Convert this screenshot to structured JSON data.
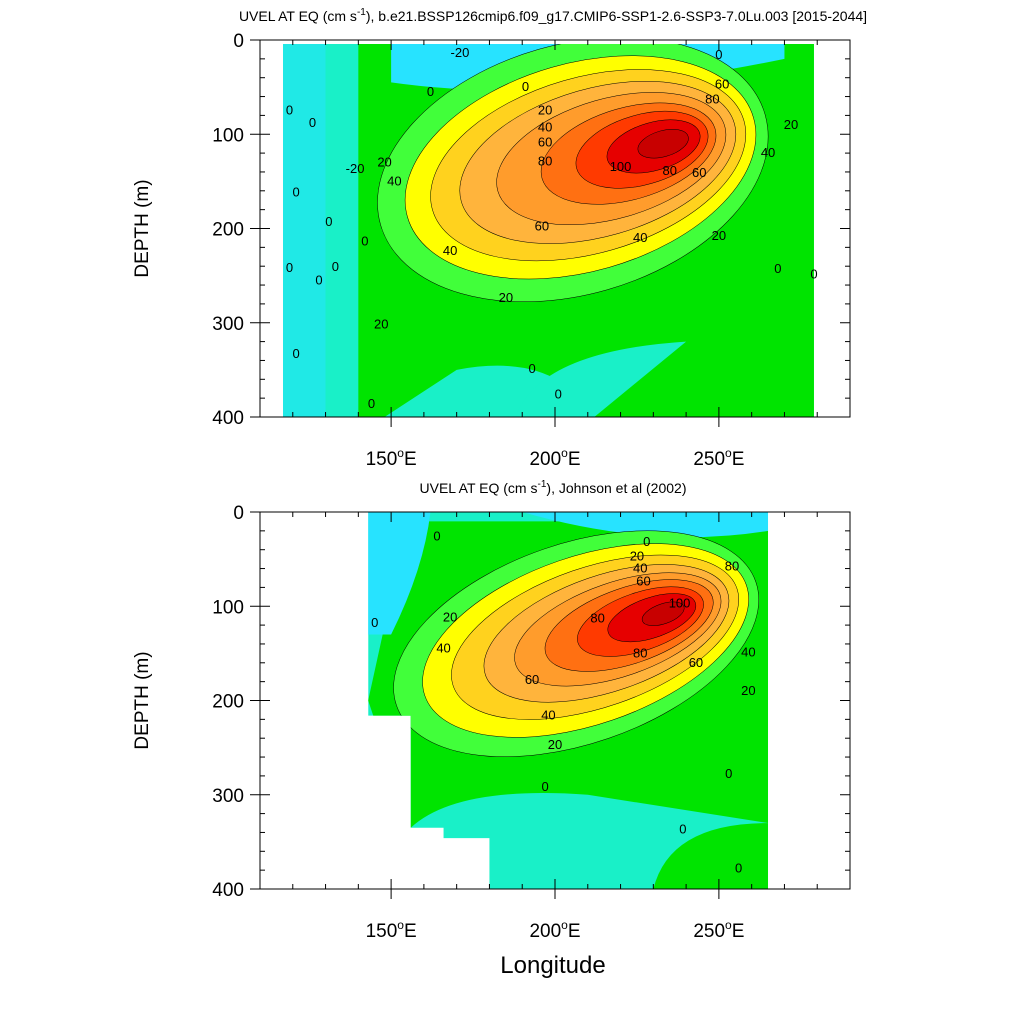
{
  "figure": {
    "xlabel": "Longitude",
    "colors": {
      "c_m20": "#27e3ff",
      "c_0": "#19f0c8",
      "c_10": "#00e400",
      "c_20": "#41ff3a",
      "c_30": "#ffff00",
      "c_40": "#ffd21e",
      "c_50": "#ffb43c",
      "c_60": "#ff9c2c",
      "c_70": "#ff7012",
      "c_80": "#ff3a00",
      "c_90": "#e60000",
      "c_100": "#c80000"
    }
  },
  "chart_data": [
    {
      "type": "contour",
      "title_prefix": "UVEL AT EQ (cm s",
      "title_sup": "-1",
      "title_suffix": "), b.e21.BSSP126cmip6.f09_g17.CMIP6-SSP1-2.6-SSP3-7.0Lu.003 [2015-2044]",
      "ylabel": "DEPTH (m)",
      "xlim": [
        110,
        290
      ],
      "ylim": [
        400,
        0
      ],
      "data_xrange": [
        117,
        279
      ],
      "xticks": [
        {
          "value": 150,
          "label": "150",
          "deg": "o",
          "hemi": "E"
        },
        {
          "value": 200,
          "label": "200",
          "deg": "o",
          "hemi": "E"
        },
        {
          "value": 250,
          "label": "250",
          "deg": "o",
          "hemi": "E"
        }
      ],
      "yticks": [
        {
          "value": 0,
          "label": "0"
        },
        {
          "value": 100,
          "label": "100"
        },
        {
          "value": 200,
          "label": "200"
        },
        {
          "value": 300,
          "label": "300"
        },
        {
          "value": 400,
          "label": "400"
        }
      ],
      "core": {
        "lon": 233,
        "depth": 110,
        "max_speed": 110
      },
      "contour_labels": [
        {
          "text": "-20",
          "lon": 171,
          "depth": 14
        },
        {
          "text": "0",
          "lon": 250,
          "depth": 16
        },
        {
          "text": "0",
          "lon": 191,
          "depth": 50
        },
        {
          "text": "0",
          "lon": 162,
          "depth": 55
        },
        {
          "text": "60",
          "lon": 251,
          "depth": 47
        },
        {
          "text": "80",
          "lon": 248,
          "depth": 63
        },
        {
          "text": "20",
          "lon": 197,
          "depth": 75
        },
        {
          "text": "40",
          "lon": 197,
          "depth": 93
        },
        {
          "text": "60",
          "lon": 197,
          "depth": 109
        },
        {
          "text": "80",
          "lon": 197,
          "depth": 129
        },
        {
          "text": "100",
          "lon": 220,
          "depth": 135
        },
        {
          "text": "80",
          "lon": 235,
          "depth": 139
        },
        {
          "text": "60",
          "lon": 244,
          "depth": 141
        },
        {
          "text": "40",
          "lon": 265,
          "depth": 120
        },
        {
          "text": "20",
          "lon": 272,
          "depth": 90
        },
        {
          "text": "20",
          "lon": 148,
          "depth": 130
        },
        {
          "text": "40",
          "lon": 151,
          "depth": 150
        },
        {
          "text": "-20",
          "lon": 139,
          "depth": 137
        },
        {
          "text": "60",
          "lon": 196,
          "depth": 198
        },
        {
          "text": "40",
          "lon": 226,
          "depth": 210
        },
        {
          "text": "20",
          "lon": 250,
          "depth": 208
        },
        {
          "text": "40",
          "lon": 168,
          "depth": 224
        },
        {
          "text": "20",
          "lon": 185,
          "depth": 274
        },
        {
          "text": "20",
          "lon": 147,
          "depth": 302
        },
        {
          "text": "0",
          "lon": 119,
          "depth": 75
        },
        {
          "text": "0",
          "lon": 126,
          "depth": 88
        },
        {
          "text": "0",
          "lon": 121,
          "depth": 162
        },
        {
          "text": "0",
          "lon": 131,
          "depth": 193
        },
        {
          "text": "0",
          "lon": 142,
          "depth": 214
        },
        {
          "text": "0",
          "lon": 119,
          "depth": 242
        },
        {
          "text": "0",
          "lon": 128,
          "depth": 255
        },
        {
          "text": "0",
          "lon": 133,
          "depth": 241
        },
        {
          "text": "0",
          "lon": 121,
          "depth": 333
        },
        {
          "text": "0",
          "lon": 144,
          "depth": 386
        },
        {
          "text": "0",
          "lon": 193,
          "depth": 349
        },
        {
          "text": "0",
          "lon": 201,
          "depth": 376
        },
        {
          "text": "0",
          "lon": 268,
          "depth": 243
        },
        {
          "text": "0",
          "lon": 279,
          "depth": 249
        }
      ]
    },
    {
      "type": "contour",
      "title_prefix": "UVEL AT EQ (cm s",
      "title_sup": "-1",
      "title_suffix": "), Johnson et al (2002)",
      "ylabel": "DEPTH (m)",
      "xlim": [
        110,
        290
      ],
      "ylim": [
        400,
        0
      ],
      "data_xrange": [
        143,
        265
      ],
      "xticks": [
        {
          "value": 150,
          "label": "150",
          "deg": "o",
          "hemi": "E"
        },
        {
          "value": 200,
          "label": "200",
          "deg": "o",
          "hemi": "E"
        },
        {
          "value": 250,
          "label": "250",
          "deg": "o",
          "hemi": "E"
        }
      ],
      "yticks": [
        {
          "value": 0,
          "label": "0"
        },
        {
          "value": 100,
          "label": "100"
        },
        {
          "value": 200,
          "label": "200"
        },
        {
          "value": 300,
          "label": "300"
        },
        {
          "value": 400,
          "label": "400"
        }
      ],
      "core": {
        "lon": 233,
        "depth": 108,
        "max_speed": 110
      },
      "contour_labels": [
        {
          "text": "0",
          "lon": 164,
          "depth": 26
        },
        {
          "text": "0",
          "lon": 145,
          "depth": 118
        },
        {
          "text": "0",
          "lon": 228,
          "depth": 32
        },
        {
          "text": "20",
          "lon": 225,
          "depth": 47
        },
        {
          "text": "40",
          "lon": 226,
          "depth": 60
        },
        {
          "text": "60",
          "lon": 227,
          "depth": 74
        },
        {
          "text": "80",
          "lon": 254,
          "depth": 58
        },
        {
          "text": "100",
          "lon": 238,
          "depth": 97
        },
        {
          "text": "80",
          "lon": 213,
          "depth": 113
        },
        {
          "text": "20",
          "lon": 168,
          "depth": 112
        },
        {
          "text": "40",
          "lon": 166,
          "depth": 145
        },
        {
          "text": "80",
          "lon": 226,
          "depth": 150
        },
        {
          "text": "60",
          "lon": 243,
          "depth": 160
        },
        {
          "text": "40",
          "lon": 259,
          "depth": 149
        },
        {
          "text": "60",
          "lon": 193,
          "depth": 178
        },
        {
          "text": "20",
          "lon": 259,
          "depth": 190
        },
        {
          "text": "40",
          "lon": 198,
          "depth": 216
        },
        {
          "text": "20",
          "lon": 200,
          "depth": 247
        },
        {
          "text": "0",
          "lon": 197,
          "depth": 292
        },
        {
          "text": "0",
          "lon": 253,
          "depth": 278
        },
        {
          "text": "0",
          "lon": 239,
          "depth": 337
        },
        {
          "text": "0",
          "lon": 256,
          "depth": 378
        }
      ]
    }
  ]
}
